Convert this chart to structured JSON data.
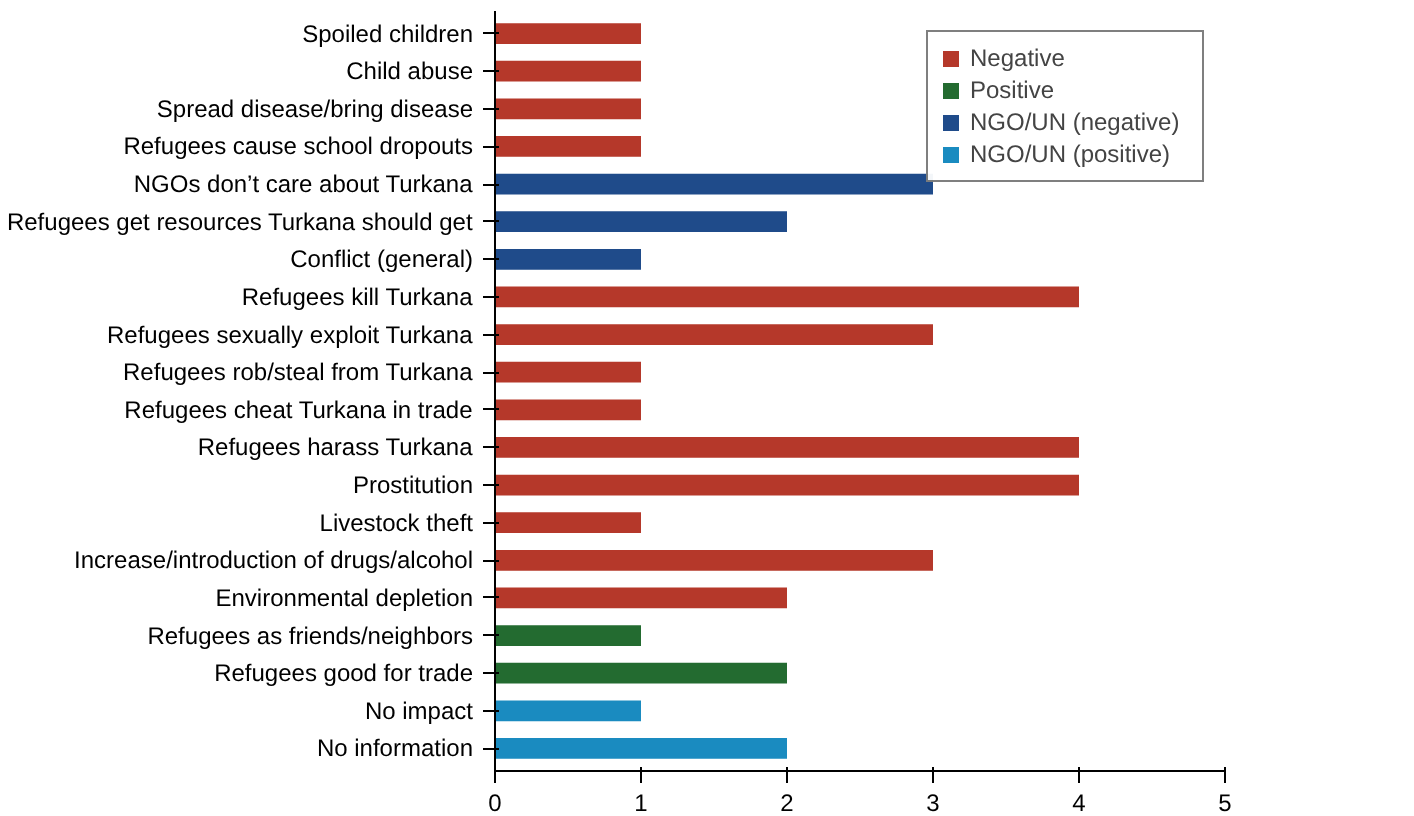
{
  "chart_data": {
    "type": "bar",
    "orientation": "horizontal",
    "categories": [
      "Spoiled children",
      "Child abuse",
      "Spread disease/bring disease",
      "Refugees cause school dropouts",
      "NGOs don’t care about Turkana",
      "Refugees get resources Turkana should get",
      "Conflict (general)",
      "Refugees kill Turkana",
      "Refugees sexually exploit Turkana",
      "Refugees rob/steal from Turkana",
      "Refugees cheat Turkana in trade",
      "Refugees harass Turkana",
      "Prostitution",
      "Livestock theft",
      "Increase/introduction of drugs/alcohol",
      "Environmental depletion",
      "Refugees as friends/neighbors",
      "Refugees good for trade",
      "No impact",
      "No information"
    ],
    "series": [
      {
        "name": "Negative",
        "color": "#b5382a",
        "values": [
          1,
          1,
          1,
          1,
          null,
          null,
          null,
          4,
          3,
          1,
          1,
          4,
          4,
          1,
          3,
          2,
          null,
          null,
          null,
          null
        ]
      },
      {
        "name": "Positive",
        "color": "#236b30",
        "values": [
          null,
          null,
          null,
          null,
          null,
          null,
          null,
          null,
          null,
          null,
          null,
          null,
          null,
          null,
          null,
          null,
          1,
          2,
          null,
          null
        ]
      },
      {
        "name": "NGO/UN (negative)",
        "color": "#1f4b8a",
        "values": [
          null,
          null,
          null,
          null,
          3,
          2,
          1,
          null,
          null,
          null,
          null,
          null,
          null,
          null,
          null,
          null,
          null,
          null,
          null,
          null
        ]
      },
      {
        "name": "NGO/UN (positive)",
        "color": "#1a8bc0",
        "values": [
          null,
          null,
          null,
          null,
          null,
          null,
          null,
          null,
          null,
          null,
          null,
          null,
          null,
          null,
          null,
          null,
          null,
          null,
          1,
          2
        ]
      }
    ],
    "xlim": [
      0,
      5
    ],
    "xticks": [
      0,
      1,
      2,
      3,
      4,
      5
    ],
    "legend": "top right",
    "grid": false
  }
}
